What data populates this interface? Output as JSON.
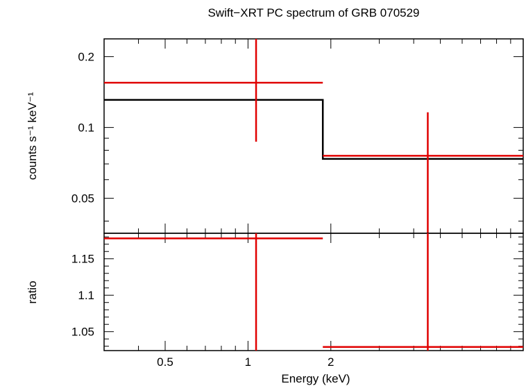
{
  "colors": {
    "model": "#000000",
    "data": "#e00000",
    "frame": "#000000",
    "background": "#ffffff"
  },
  "chart_data": [
    {
      "type": "line",
      "panel": "spectrum",
      "title": "Swift−XRT PC spectrum of GRB 070529",
      "xlabel": "",
      "ylabel": "counts s⁻¹ keV⁻¹",
      "xscale": "log",
      "yscale": "log",
      "xlim": [
        0.3,
        10
      ],
      "ylim": [
        0.0355,
        0.238
      ],
      "yticks": [
        0.05,
        0.1,
        0.2
      ],
      "yticklabels": [
        "0.05",
        "0.1",
        "0.2"
      ],
      "grid": false,
      "series": [
        {
          "role": "data",
          "points": [
            {
              "x": 1.07,
              "xlo": 0.3,
              "xhi": 1.87,
              "y": 0.155,
              "ylo": 0.087,
              "yhi": 0.238
            },
            {
              "x": 4.5,
              "xlo": 1.87,
              "xhi": 10.0,
              "y": 0.0758,
              "ylo": 0.0355,
              "yhi": 0.116
            }
          ]
        },
        {
          "role": "model",
          "steps": [
            {
              "x0": 0.3,
              "x1": 1.87,
              "y": 0.131
            },
            {
              "x0": 1.87,
              "x1": 10.0,
              "y": 0.0735
            }
          ]
        }
      ]
    },
    {
      "type": "scatter",
      "panel": "ratio",
      "xlabel": "Energy (keV)",
      "ylabel": "ratio",
      "xscale": "log",
      "xlim": [
        0.3,
        10
      ],
      "ylim": [
        1.024,
        1.185
      ],
      "xticks": [
        0.5,
        1,
        2
      ],
      "xticklabels": [
        "0.5",
        "1",
        "2"
      ],
      "yticks": [
        1.05,
        1.1,
        1.15
      ],
      "yticklabels": [
        "1.05",
        "1.1",
        "1.15"
      ],
      "grid": false,
      "series": [
        {
          "role": "data",
          "points": [
            {
              "x": 1.07,
              "xlo": 0.3,
              "xhi": 1.87,
              "y": 1.178,
              "ylo": 1.024,
              "yhi": 1.185
            },
            {
              "x": 4.5,
              "xlo": 1.87,
              "xhi": 10.0,
              "y": 1.029,
              "ylo": 1.024,
              "yhi": 1.185
            }
          ]
        }
      ]
    }
  ]
}
